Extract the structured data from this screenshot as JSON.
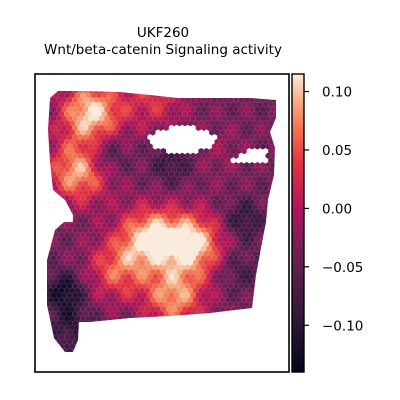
{
  "chart_data": {
    "type": "heatmap",
    "title": "UKF260",
    "subtitle": "Wnt/beta-catenin Signaling activity",
    "xlabel": "",
    "ylabel": "",
    "colormap": "rocket",
    "colorbar": {
      "range": [
        -0.14,
        0.115
      ],
      "ticks": [
        0.1,
        0.05,
        0.0,
        -0.05,
        -0.1
      ],
      "tick_labels": [
        "0.10",
        "0.05",
        "0.00",
        "−0.05",
        "−0.10"
      ]
    },
    "hotspots": [
      {
        "x": 0.22,
        "y": 0.13,
        "value": 0.11
      },
      {
        "x": 0.17,
        "y": 0.33,
        "value": 0.09
      },
      {
        "x": 0.45,
        "y": 0.55,
        "value": 0.1
      },
      {
        "x": 0.62,
        "y": 0.57,
        "value": 0.11
      },
      {
        "x": 0.32,
        "y": 0.66,
        "value": 0.05
      },
      {
        "x": 0.55,
        "y": 0.75,
        "value": 0.08
      },
      {
        "x": 0.47,
        "y": 0.08,
        "value": 0.03
      },
      {
        "x": 0.72,
        "y": 0.26,
        "value": -0.02
      }
    ],
    "coldspots": [
      {
        "x": 0.12,
        "y": 0.73,
        "value": -0.13
      },
      {
        "x": 0.28,
        "y": 0.27,
        "value": -0.1
      },
      {
        "x": 0.54,
        "y": 0.3,
        "value": -0.09
      },
      {
        "x": 0.82,
        "y": 0.49,
        "value": -0.1
      },
      {
        "x": 0.14,
        "y": 0.85,
        "value": -0.1
      },
      {
        "x": 0.8,
        "y": 0.66,
        "value": -0.08
      },
      {
        "x": 0.37,
        "y": 0.88,
        "value": -0.06
      }
    ]
  }
}
